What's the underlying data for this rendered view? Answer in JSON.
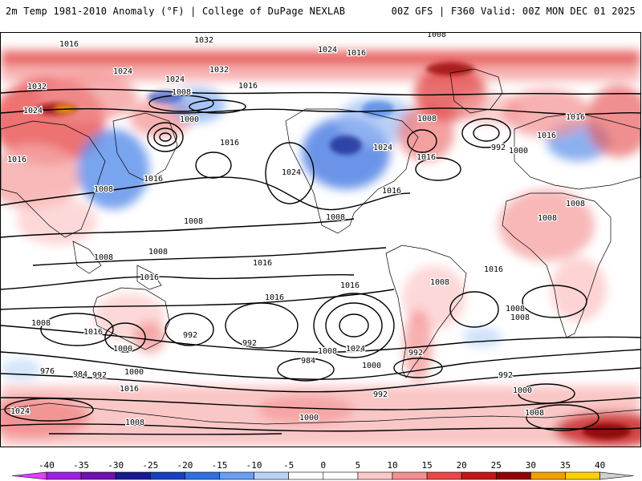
{
  "header": {
    "title": "2m Temp 1981-2010 Anomaly (°F) | College of DuPage NEXLAB",
    "run_info": "00Z GFS | F360 Valid: 00Z MON DEC 01 2025"
  },
  "colorbar": {
    "labels": [
      "-40",
      "-35",
      "-30",
      "-25",
      "-20",
      "-15",
      "-10",
      "-5",
      "0",
      "5",
      "10",
      "15",
      "20",
      "25",
      "30",
      "35",
      "40"
    ],
    "colors": [
      "#e040ff",
      "#a020e0",
      "#7010b0",
      "#1a1a90",
      "#1840c0",
      "#3070e0",
      "#6a9ef0",
      "#b8d4f8",
      "#ffffff",
      "#ffffff",
      "#fcc8c8",
      "#f49090",
      "#e84848",
      "#c01818",
      "#900000",
      "#f0a000",
      "#ffd000",
      "#d0d0d0"
    ]
  },
  "map": {
    "isobar_labels": [
      {
        "text": "1008"
      },
      {
        "text": "1016"
      },
      {
        "text": "1032"
      },
      {
        "text": "1024"
      },
      {
        "text": "1016"
      },
      {
        "text": "1008"
      },
      {
        "text": "1024"
      },
      {
        "text": "1032"
      },
      {
        "text": "1024"
      },
      {
        "text": "1008"
      },
      {
        "text": "1032"
      },
      {
        "text": "1008"
      },
      {
        "text": "1016"
      },
      {
        "text": "1000"
      },
      {
        "text": "1016"
      },
      {
        "text": "1024"
      },
      {
        "text": "1016"
      },
      {
        "text": "1024"
      },
      {
        "text": "1016"
      },
      {
        "text": "1008"
      },
      {
        "text": "1016"
      },
      {
        "text": "1024"
      },
      {
        "text": "1016"
      },
      {
        "text": "992"
      },
      {
        "text": "1000"
      },
      {
        "text": "1016"
      },
      {
        "text": "1008"
      },
      {
        "text": "1016"
      },
      {
        "text": "1008"
      },
      {
        "text": "1008"
      },
      {
        "text": "1008"
      },
      {
        "text": "1008"
      },
      {
        "text": "1008"
      },
      {
        "text": "1008"
      },
      {
        "text": "1016"
      },
      {
        "text": "1016"
      },
      {
        "text": "1016"
      },
      {
        "text": "1016"
      },
      {
        "text": "1008"
      },
      {
        "text": "1016"
      },
      {
        "text": "1008"
      },
      {
        "text": "1008"
      },
      {
        "text": "1016"
      },
      {
        "text": "1008"
      },
      {
        "text": "1000"
      },
      {
        "text": "992"
      },
      {
        "text": "992"
      },
      {
        "text": "1008"
      },
      {
        "text": "1024"
      },
      {
        "text": "992"
      },
      {
        "text": "984"
      },
      {
        "text": "1000"
      },
      {
        "text": "976"
      },
      {
        "text": "984"
      },
      {
        "text": "992"
      },
      {
        "text": "1000"
      },
      {
        "text": "1016"
      },
      {
        "text": "992"
      },
      {
        "text": "992"
      },
      {
        "text": "1000"
      },
      {
        "text": "1024"
      },
      {
        "text": "1008"
      },
      {
        "text": "1000"
      },
      {
        "text": "1008"
      }
    ]
  }
}
